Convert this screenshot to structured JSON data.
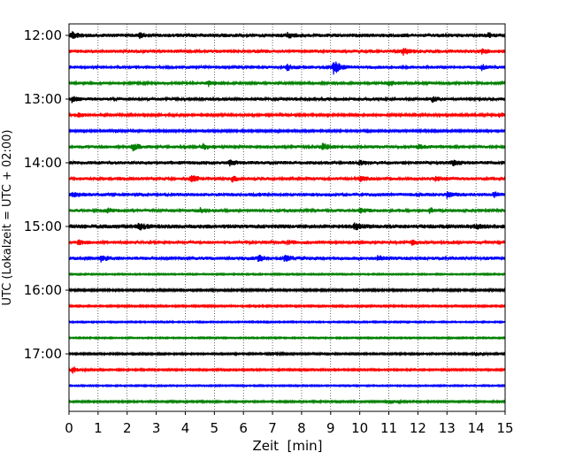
{
  "chart_data": {
    "type": "line",
    "title": "",
    "xlabel": "Zeit  [min]",
    "ylabel": "UTC (Lokalzeit = UTC + 02:00)",
    "xlim": [
      0,
      15
    ],
    "x_ticks": [
      "0",
      "1",
      "2",
      "3",
      "4",
      "5",
      "6",
      "7",
      "8",
      "9",
      "10",
      "11",
      "12",
      "13",
      "14",
      "15"
    ],
    "x_grid": "dotted vertical lines at each minute",
    "y_ticks": [
      {
        "label": "12:00",
        "row": 0
      },
      {
        "label": "13:00",
        "row": 4
      },
      {
        "label": "14:00",
        "row": 8
      },
      {
        "label": "15:00",
        "row": 12
      },
      {
        "label": "16:00",
        "row": 16
      },
      {
        "label": "17:00",
        "row": 20
      }
    ],
    "row_interval_minutes": 15,
    "color_cycle": [
      "#000000",
      "#ff0000",
      "#0000ff",
      "#008000"
    ],
    "series": [
      {
        "start": "12:00",
        "color": "#000000",
        "amplitude": 0.65,
        "events": [
          [
            0.1,
            1.0
          ],
          [
            2.4,
            0.8
          ],
          [
            7.5,
            0.8
          ],
          [
            14.4,
            0.7
          ]
        ]
      },
      {
        "start": "12:15",
        "color": "#ff0000",
        "amplitude": 0.6,
        "events": [
          [
            11.5,
            1.0
          ],
          [
            14.2,
            0.8
          ]
        ]
      },
      {
        "start": "12:30",
        "color": "#0000ff",
        "amplitude": 0.55,
        "events": [
          [
            9.1,
            2.6
          ],
          [
            7.5,
            1.0
          ],
          [
            14.2,
            0.8
          ]
        ]
      },
      {
        "start": "12:45",
        "color": "#008000",
        "amplitude": 0.5,
        "events": [
          [
            4.8,
            0.9
          ],
          [
            11.0,
            0.9
          ]
        ]
      },
      {
        "start": "13:00",
        "color": "#000000",
        "amplitude": 0.55,
        "events": [
          [
            0.1,
            0.9
          ],
          [
            12.5,
            0.8
          ]
        ]
      },
      {
        "start": "13:15",
        "color": "#ff0000",
        "amplitude": 0.45,
        "events": [
          [
            0.3,
            0.8
          ],
          [
            14.8,
            0.7
          ]
        ]
      },
      {
        "start": "13:30",
        "color": "#0000ff",
        "amplitude": 0.35,
        "events": [
          [
            1.6,
            0.7
          ]
        ]
      },
      {
        "start": "13:45",
        "color": "#008000",
        "amplitude": 0.55,
        "events": [
          [
            2.2,
            1.3
          ],
          [
            8.7,
            1.4
          ],
          [
            4.6,
            0.9
          ],
          [
            12.0,
            0.7
          ]
        ]
      },
      {
        "start": "14:00",
        "color": "#000000",
        "amplitude": 0.6,
        "events": [
          [
            5.5,
            0.9
          ],
          [
            13.2,
            0.9
          ],
          [
            10.0,
            0.8
          ]
        ]
      },
      {
        "start": "14:15",
        "color": "#ff0000",
        "amplitude": 0.55,
        "events": [
          [
            4.2,
            1.3
          ],
          [
            5.6,
            1.0
          ],
          [
            10.0,
            1.0
          ],
          [
            12.6,
            0.9
          ]
        ]
      },
      {
        "start": "14:30",
        "color": "#0000ff",
        "amplitude": 0.6,
        "events": [
          [
            0.1,
            0.9
          ],
          [
            13.0,
            0.9
          ],
          [
            14.6,
            0.8
          ]
        ]
      },
      {
        "start": "14:45",
        "color": "#008000",
        "amplitude": 0.55,
        "events": [
          [
            1.3,
            0.9
          ],
          [
            4.5,
            0.8
          ],
          [
            10.0,
            0.8
          ],
          [
            12.4,
            0.8
          ]
        ]
      },
      {
        "start": "15:00",
        "color": "#000000",
        "amplitude": 0.75,
        "events": [
          [
            2.4,
            1.2
          ],
          [
            9.8,
            1.1
          ],
          [
            14.0,
            0.8
          ]
        ]
      },
      {
        "start": "15:15",
        "color": "#ff0000",
        "amplitude": 0.55,
        "events": [
          [
            0.3,
            0.8
          ],
          [
            7.5,
            0.7
          ],
          [
            11.8,
            0.7
          ]
        ]
      },
      {
        "start": "15:30",
        "color": "#0000ff",
        "amplitude": 0.6,
        "events": [
          [
            1.1,
            1.0
          ],
          [
            6.5,
            1.0
          ],
          [
            7.4,
            1.1
          ],
          [
            10.6,
            1.0
          ]
        ]
      },
      {
        "start": "15:45",
        "color": "#008000",
        "amplitude": 0.25,
        "events": []
      },
      {
        "start": "16:00",
        "color": "#000000",
        "amplitude": 0.35,
        "events": []
      },
      {
        "start": "16:15",
        "color": "#ff0000",
        "amplitude": 0.3,
        "events": []
      },
      {
        "start": "16:30",
        "color": "#0000ff",
        "amplitude": 0.25,
        "events": []
      },
      {
        "start": "16:45",
        "color": "#008000",
        "amplitude": 0.25,
        "events": []
      },
      {
        "start": "17:00",
        "color": "#000000",
        "amplitude": 0.3,
        "events": [
          [
            14.0,
            0.7
          ],
          [
            6.9,
            0.6
          ]
        ]
      },
      {
        "start": "17:15",
        "color": "#ff0000",
        "amplitude": 0.3,
        "events": [
          [
            0.1,
            1.4
          ]
        ]
      },
      {
        "start": "17:30",
        "color": "#0000ff",
        "amplitude": 0.25,
        "events": []
      },
      {
        "start": "17:45",
        "color": "#008000",
        "amplitude": 0.3,
        "events": [
          [
            11.0,
            0.8
          ]
        ]
      }
    ]
  }
}
